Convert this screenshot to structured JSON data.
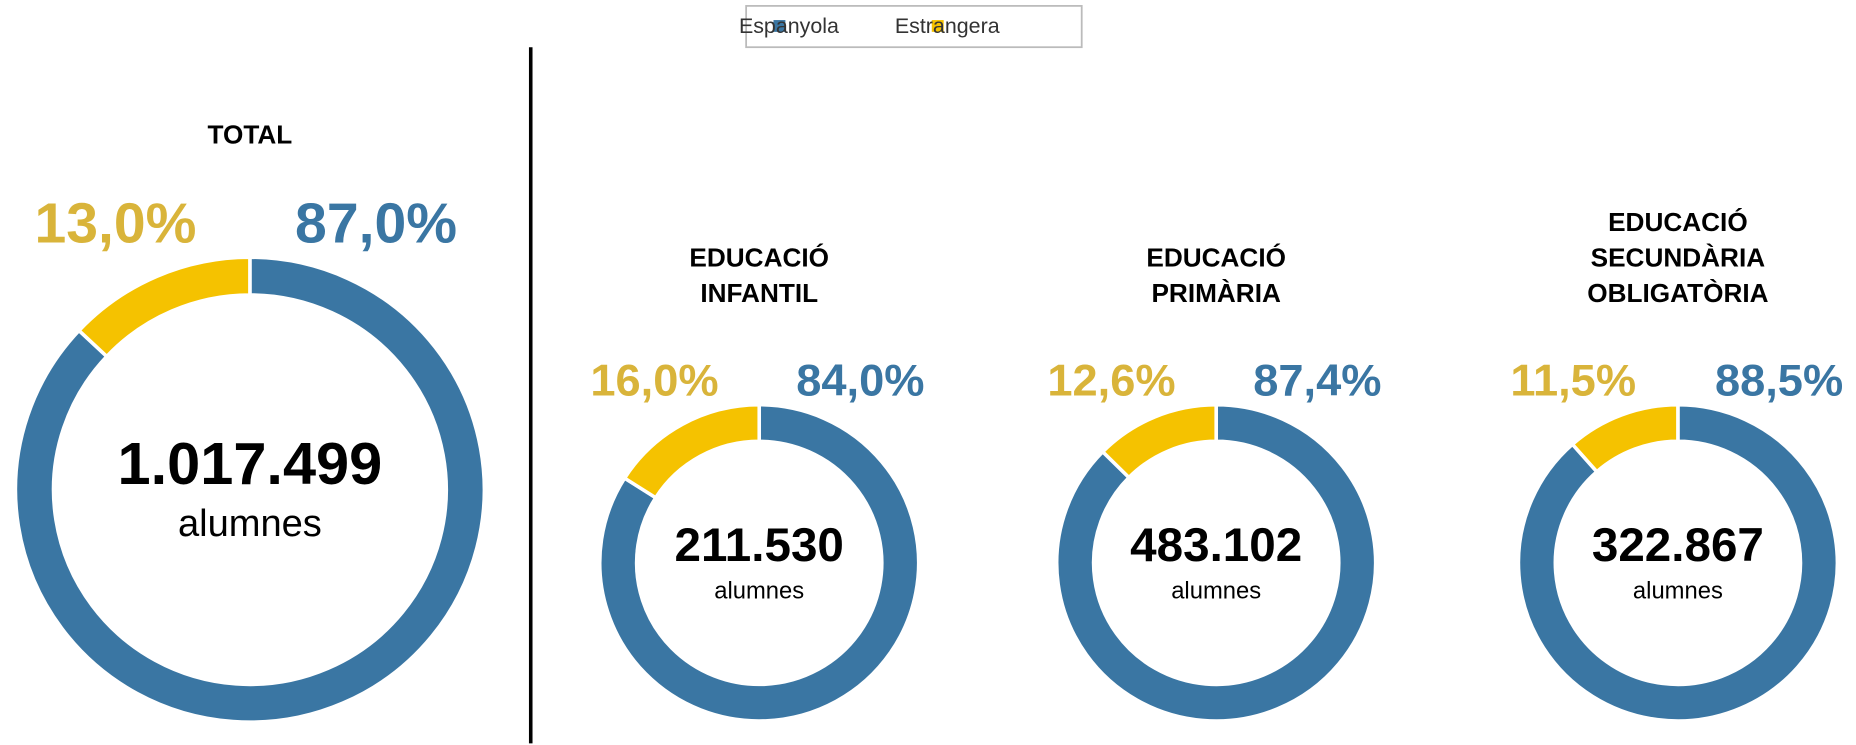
{
  "legend": {
    "names": [
      "Espanyola",
      "Estrangera"
    ],
    "colors": [
      "#3a76a3",
      "#f5c200"
    ]
  },
  "chart_data": [
    {
      "type": "donut",
      "title": [
        "TOTAL"
      ],
      "values": [
        87.0,
        13.0
      ],
      "value_labels": [
        "87,0%",
        "13,0%"
      ],
      "center_text": "1.017.499",
      "unit": "alumnes"
    },
    {
      "type": "donut",
      "title": [
        "EDUCACIÓ",
        "INFANTIL"
      ],
      "values": [
        84.0,
        16.0
      ],
      "value_labels": [
        "84,0%",
        "16,0%"
      ],
      "center_text": "211.530",
      "unit": "alumnes"
    },
    {
      "type": "donut",
      "title": [
        "EDUCACIÓ",
        "PRIMÀRIA"
      ],
      "values": [
        87.4,
        12.6
      ],
      "value_labels": [
        "87,4%",
        "12,6%"
      ],
      "center_text": "483.102",
      "unit": "alumnes"
    },
    {
      "type": "donut",
      "title": [
        "EDUCACIÓ",
        "SECUNDÀRIA",
        "OBLIGATÒRIA"
      ],
      "values": [
        88.5,
        11.5
      ],
      "value_labels": [
        "88,5%",
        "11,5%"
      ],
      "center_text": "322.867",
      "unit": "alumnes"
    }
  ]
}
